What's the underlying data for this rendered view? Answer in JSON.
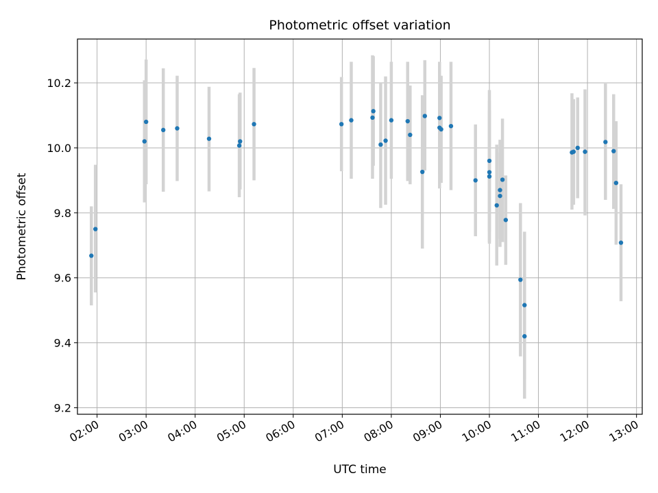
{
  "chart_data": {
    "type": "scatter",
    "title": "Photometric offset variation",
    "xlabel": "UTC time",
    "ylabel": "Photometric offset",
    "xlim": [
      "01:36",
      "13:07"
    ],
    "ylim": [
      9.18,
      10.335
    ],
    "grid": true,
    "x_ticks": [
      "02:00",
      "03:00",
      "04:00",
      "05:00",
      "06:00",
      "07:00",
      "08:00",
      "09:00",
      "10:00",
      "11:00",
      "12:00",
      "13:00"
    ],
    "y_ticks": [
      "9.2",
      "9.4",
      "9.6",
      "9.8",
      "10.0",
      "10.2"
    ],
    "colors": {
      "marker": "#1f77b4",
      "errorbar": "#d3d3d3",
      "grid": "#b0b0b0"
    },
    "series": [
      {
        "points": [
          {
            "x": "01:53",
            "y": 9.668,
            "lo": 9.515,
            "hi": 9.82
          },
          {
            "x": "01:58",
            "y": 9.75,
            "lo": 9.555,
            "hi": 9.948
          },
          {
            "x": "02:58",
            "y": 10.02,
            "lo": 9.832,
            "hi": 10.208
          },
          {
            "x": "03:00",
            "y": 10.08,
            "lo": 9.888,
            "hi": 10.272
          },
          {
            "x": "03:21",
            "y": 10.055,
            "lo": 9.865,
            "hi": 10.245
          },
          {
            "x": "03:38",
            "y": 10.06,
            "lo": 9.898,
            "hi": 10.222
          },
          {
            "x": "04:17",
            "y": 10.028,
            "lo": 9.866,
            "hi": 10.188
          },
          {
            "x": "04:54",
            "y": 10.007,
            "lo": 9.848,
            "hi": 10.165
          },
          {
            "x": "04:55",
            "y": 10.02,
            "lo": 9.872,
            "hi": 10.17
          },
          {
            "x": "05:12",
            "y": 10.073,
            "lo": 9.9,
            "hi": 10.246
          },
          {
            "x": "06:59",
            "y": 10.073,
            "lo": 9.928,
            "hi": 10.218
          },
          {
            "x": "07:11",
            "y": 10.085,
            "lo": 9.905,
            "hi": 10.265
          },
          {
            "x": "07:37",
            "y": 10.093,
            "lo": 9.905,
            "hi": 10.285
          },
          {
            "x": "07:38",
            "y": 10.113,
            "lo": 9.945,
            "hi": 10.282
          },
          {
            "x": "07:47",
            "y": 10.01,
            "lo": 9.815,
            "hi": 10.2
          },
          {
            "x": "07:53",
            "y": 10.022,
            "lo": 9.825,
            "hi": 10.22
          },
          {
            "x": "08:00",
            "y": 10.085,
            "lo": 9.905,
            "hi": 10.265
          },
          {
            "x": "08:20",
            "y": 10.082,
            "lo": 9.898,
            "hi": 10.265
          },
          {
            "x": "08:23",
            "y": 10.04,
            "lo": 9.888,
            "hi": 10.192
          },
          {
            "x": "08:38",
            "y": 9.926,
            "lo": 9.69,
            "hi": 10.162
          },
          {
            "x": "08:41",
            "y": 10.098,
            "lo": 9.93,
            "hi": 10.27
          },
          {
            "x": "08:59",
            "y": 10.092,
            "lo": 9.92,
            "hi": 10.265
          },
          {
            "x": "08:59",
            "y": 10.062,
            "lo": 9.875,
            "hi": 10.25
          },
          {
            "x": "09:01",
            "y": 10.057,
            "lo": 9.892,
            "hi": 10.222
          },
          {
            "x": "09:13",
            "y": 10.067,
            "lo": 9.87,
            "hi": 10.265
          },
          {
            "x": "09:43",
            "y": 9.9,
            "lo": 9.728,
            "hi": 10.072
          },
          {
            "x": "10:00",
            "y": 9.96,
            "lo": 9.742,
            "hi": 10.178
          },
          {
            "x": "10:00",
            "y": 9.925,
            "lo": 9.705,
            "hi": 10.145
          },
          {
            "x": "10:00",
            "y": 9.912,
            "lo": 9.71,
            "hi": 10.115
          },
          {
            "x": "10:09",
            "y": 9.823,
            "lo": 9.638,
            "hi": 10.01
          },
          {
            "x": "10:13",
            "y": 9.87,
            "lo": 9.695,
            "hi": 10.025
          },
          {
            "x": "10:13",
            "y": 9.852,
            "lo": 9.72,
            "hi": 9.985
          },
          {
            "x": "10:16",
            "y": 9.902,
            "lo": 9.71,
            "hi": 10.09
          },
          {
            "x": "10:20",
            "y": 9.778,
            "lo": 9.64,
            "hi": 9.915
          },
          {
            "x": "10:38",
            "y": 9.594,
            "lo": 9.358,
            "hi": 9.83
          },
          {
            "x": "10:43",
            "y": 9.516,
            "lo": 9.29,
            "hi": 9.742
          },
          {
            "x": "10:43",
            "y": 9.42,
            "lo": 9.228,
            "hi": 9.612
          },
          {
            "x": "11:41",
            "y": 9.986,
            "lo": 9.81,
            "hi": 10.168
          },
          {
            "x": "11:43",
            "y": 9.988,
            "lo": 9.825,
            "hi": 10.15
          },
          {
            "x": "11:48",
            "y": 10.0,
            "lo": 9.845,
            "hi": 10.155
          },
          {
            "x": "11:57",
            "y": 9.988,
            "lo": 9.792,
            "hi": 10.18
          },
          {
            "x": "12:22",
            "y": 10.018,
            "lo": 9.84,
            "hi": 10.198
          },
          {
            "x": "12:32",
            "y": 9.99,
            "lo": 9.812,
            "hi": 10.165
          },
          {
            "x": "12:35",
            "y": 9.892,
            "lo": 9.702,
            "hi": 10.082
          },
          {
            "x": "12:41",
            "y": 9.708,
            "lo": 9.528,
            "hi": 9.888
          }
        ]
      }
    ]
  }
}
